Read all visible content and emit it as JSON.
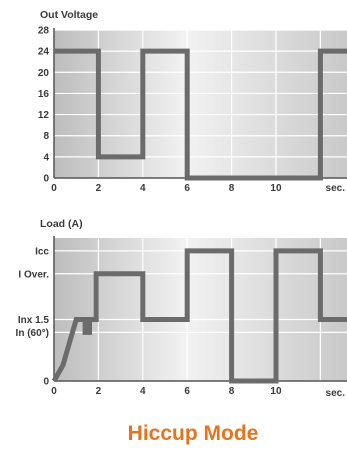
{
  "caption": "Hiccup Mode",
  "colors": {
    "trace": "#6b6b6b",
    "grid": "#ffffff",
    "panel_light": "#f2f2f2",
    "panel_dark": "#c4c4c4",
    "caption": "#e8731f"
  },
  "chart_data": [
    {
      "type": "line",
      "title": "Out Voltage",
      "xlabel": "sec.",
      "ylabel": "",
      "xlim": [
        0,
        13.2
      ],
      "ylim": [
        0,
        28
      ],
      "x_ticks": [
        0,
        2,
        4,
        6,
        8,
        10
      ],
      "x_tick_labels": [
        "0",
        "2",
        "4",
        "6",
        "8",
        "10"
      ],
      "y_ticks": [
        0,
        4,
        8,
        12,
        16,
        20,
        24,
        28
      ],
      "y_tick_labels": [
        "0",
        "4",
        "8",
        "12",
        "16",
        "20",
        "24",
        "28"
      ],
      "grid": true,
      "series": [
        {
          "x": [
            0,
            2,
            2,
            4,
            4,
            6,
            6,
            12,
            12,
            13.2
          ],
          "y": [
            24,
            24,
            4,
            4,
            24,
            24,
            0,
            0,
            24,
            24
          ]
        }
      ]
    },
    {
      "type": "line",
      "title": "Load (A)",
      "xlabel": "sec.",
      "ylabel": "",
      "xlim": [
        0,
        13.2
      ],
      "ylim": [
        0,
        10
      ],
      "x_ticks": [
        0,
        2,
        4,
        6,
        8,
        10
      ],
      "x_tick_labels": [
        "0",
        "2",
        "4",
        "6",
        "8",
        "10"
      ],
      "y_ticks": [
        0,
        3.4,
        4.3,
        7.5,
        9.1
      ],
      "y_tick_labels": [
        "0",
        "In (60°)",
        "Inx 1.5",
        "I Over.",
        "Icc"
      ],
      "grid": true,
      "series": [
        {
          "x": [
            0,
            0.4,
            1.0,
            1.4,
            1.4,
            1.6,
            1.6,
            1.9,
            1.9,
            4,
            4,
            6,
            6,
            8,
            8,
            10,
            10,
            12,
            12,
            13.2
          ],
          "y": [
            0,
            1.1,
            4.3,
            4.3,
            3.4,
            3.4,
            4.3,
            4.3,
            7.5,
            7.5,
            4.3,
            4.3,
            9.1,
            9.1,
            0,
            0,
            9.1,
            9.1,
            4.3,
            4.3
          ]
        }
      ]
    }
  ]
}
